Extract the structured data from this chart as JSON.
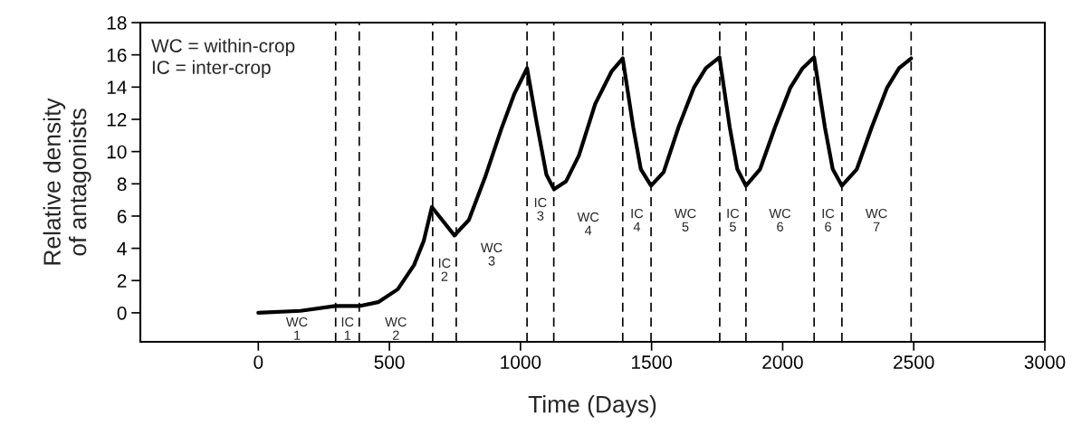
{
  "chart_data": {
    "type": "line",
    "xlabel": "Time (Days)",
    "ylabel": "Relative density\nof antagonists",
    "xlim": [
      -450,
      3000
    ],
    "xticks": [
      0,
      500,
      1000,
      1500,
      2000,
      2500,
      3000
    ],
    "ylim": [
      -1.8,
      18
    ],
    "yticks": [
      0,
      2,
      4,
      6,
      8,
      10,
      12,
      14,
      16,
      18
    ],
    "grid": false,
    "legend": false,
    "marker": "none",
    "line_style": "solid",
    "series": [
      {
        "color": "#000000",
        "x": [
          0,
          161,
          294,
          385,
          457,
          532,
          594,
          631,
          662,
          748,
          803,
          864,
          926,
          976,
          1025,
          1062,
          1099,
          1128,
          1174,
          1223,
          1285,
          1347,
          1390,
          1430,
          1459,
          1498,
          1546,
          1603,
          1661,
          1707,
          1759,
          1798,
          1827,
          1860,
          1914,
          1971,
          2029,
          2076,
          2120,
          2161,
          2191,
          2226,
          2283,
          2340,
          2398,
          2444,
          2490
        ],
        "values": [
          0,
          0.12,
          0.42,
          0.42,
          0.66,
          1.46,
          2.96,
          4.46,
          6.56,
          4.8,
          5.76,
          8.36,
          11.36,
          13.56,
          15.17,
          11.76,
          8.56,
          7.66,
          8.16,
          9.76,
          12.96,
          14.96,
          15.78,
          11.52,
          8.91,
          7.88,
          8.72,
          11.52,
          13.95,
          15.17,
          15.85,
          11.52,
          8.91,
          7.88,
          8.91,
          11.52,
          13.95,
          15.17,
          15.85,
          11.52,
          8.91,
          7.88,
          8.91,
          11.52,
          13.95,
          15.17,
          15.78
        ]
      }
    ],
    "ref_lines": [
      {
        "axis": "x",
        "value": 295,
        "color": "#000000",
        "line_style": "dashed"
      },
      {
        "axis": "x",
        "value": 385,
        "color": "#000000",
        "line_style": "dashed"
      },
      {
        "axis": "x",
        "value": 665,
        "color": "#000000",
        "line_style": "dashed"
      },
      {
        "axis": "x",
        "value": 755,
        "color": "#000000",
        "line_style": "dashed"
      },
      {
        "axis": "x",
        "value": 1025,
        "color": "#000000",
        "line_style": "dashed"
      },
      {
        "axis": "x",
        "value": 1127,
        "color": "#000000",
        "line_style": "dashed"
      },
      {
        "axis": "x",
        "value": 1390,
        "color": "#000000",
        "line_style": "dashed"
      },
      {
        "axis": "x",
        "value": 1498,
        "color": "#000000",
        "line_style": "dashed"
      },
      {
        "axis": "x",
        "value": 1760,
        "color": "#000000",
        "line_style": "dashed"
      },
      {
        "axis": "x",
        "value": 1860,
        "color": "#000000",
        "line_style": "dashed"
      },
      {
        "axis": "x",
        "value": 2120,
        "color": "#000000",
        "line_style": "dashed"
      },
      {
        "axis": "x",
        "value": 2226,
        "color": "#000000",
        "line_style": "dashed"
      },
      {
        "axis": "x",
        "value": 2490,
        "color": "#000000",
        "line_style": "dashed"
      }
    ],
    "annotations": [
      "WC = within-crop\nIC = inter-crop",
      "WC\n1",
      "IC\n1",
      "WC\n2",
      "IC\n2",
      "WC\n3",
      "IC\n3",
      "WC\n4",
      "IC\n4",
      "WC\n5",
      "IC\n5",
      "WC\n6",
      "IC\n6",
      "WC\n7"
    ]
  }
}
